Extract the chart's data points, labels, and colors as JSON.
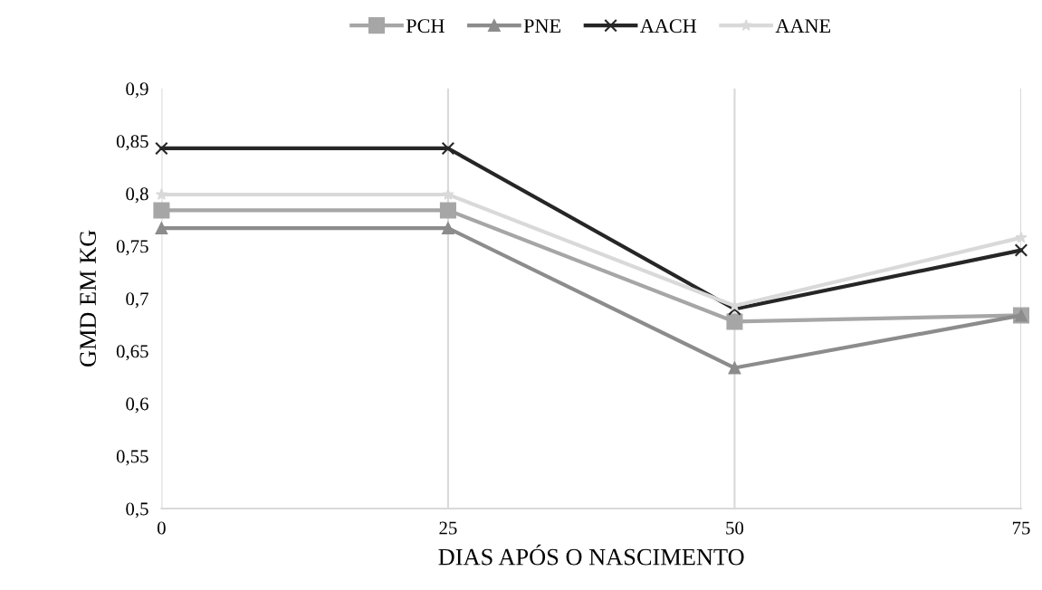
{
  "chart_data": {
    "type": "line",
    "xlabel": "DIAS APÓS O NASCIMENTO",
    "ylabel": "GMD EM KG",
    "categories": [
      "0",
      "25",
      "50",
      "75"
    ],
    "series": [
      {
        "name": "PCH",
        "color": "#a6a6a6",
        "marker": "square",
        "values": [
          0.784,
          0.784,
          0.678,
          0.684
        ]
      },
      {
        "name": "PNE",
        "color": "#8c8c8c",
        "marker": "triangle",
        "values": [
          0.767,
          0.767,
          0.634,
          0.684
        ]
      },
      {
        "name": "AACH",
        "color": "#262626",
        "marker": "cross",
        "values": [
          0.843,
          0.843,
          0.69,
          0.746
        ]
      },
      {
        "name": "AANE",
        "color": "#d9d9d9",
        "marker": "star",
        "values": [
          0.799,
          0.799,
          0.693,
          0.758
        ]
      }
    ],
    "ylim": [
      0.5,
      0.9
    ],
    "yticks": [
      {
        "value": 0.5,
        "label": "0,5"
      },
      {
        "value": 0.55,
        "label": "0,55"
      },
      {
        "value": 0.6,
        "label": "0,6"
      },
      {
        "value": 0.65,
        "label": "0,65"
      },
      {
        "value": 0.7,
        "label": "0,7"
      },
      {
        "value": 0.75,
        "label": "0,75"
      },
      {
        "value": 0.8,
        "label": "0,8"
      },
      {
        "value": 0.85,
        "label": "0,85"
      },
      {
        "value": 0.9,
        "label": "0,9"
      }
    ],
    "grid": "x",
    "legend": "top",
    "line_style": "solid"
  }
}
